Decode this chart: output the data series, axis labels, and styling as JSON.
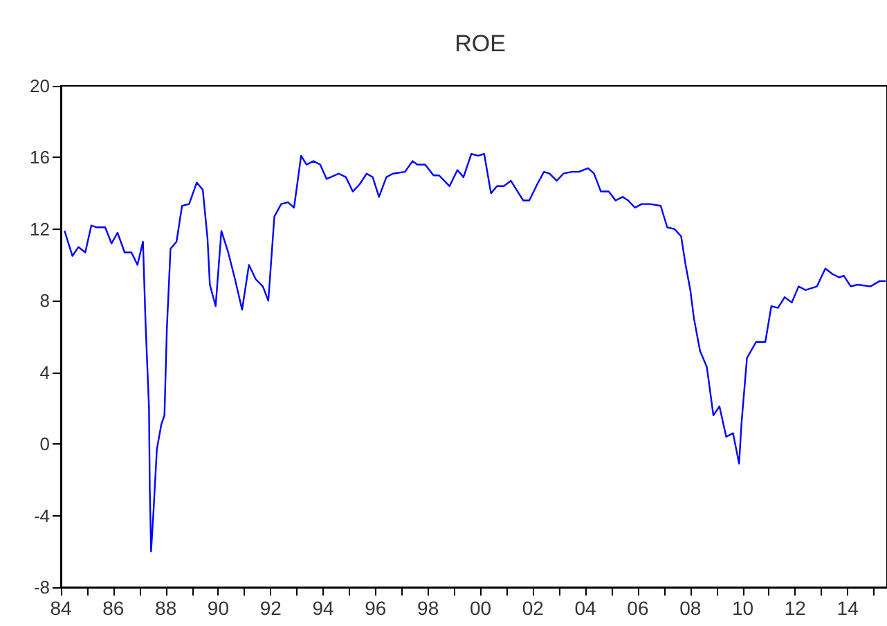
{
  "chart_data": {
    "type": "line",
    "title": "ROE",
    "x": [
      1984.14,
      1984.44,
      1984.67,
      1984.93,
      1985.16,
      1985.37,
      1985.69,
      1985.93,
      1986.16,
      1986.43,
      1986.69,
      1986.92,
      1987.13,
      1987.23,
      1987.36,
      1987.39,
      1987.44,
      1987.53,
      1987.66,
      1987.83,
      1987.95,
      1988.04,
      1988.18,
      1988.41,
      1988.62,
      1988.89,
      1989.18,
      1989.41,
      1989.59,
      1989.68,
      1989.9,
      1990.12,
      1990.38,
      1990.64,
      1990.91,
      1991.17,
      1991.43,
      1991.7,
      1991.91,
      1992.14,
      1992.4,
      1992.66,
      1992.89,
      1993.16,
      1993.37,
      1993.63,
      1993.89,
      1994.13,
      1994.6,
      1994.87,
      1995.13,
      1995.39,
      1995.66,
      1995.89,
      1996.13,
      1996.41,
      1996.66,
      1997.12,
      1997.41,
      1997.59,
      1997.89,
      1998.21,
      1998.42,
      1998.82,
      1999.12,
      1999.35,
      1999.65,
      1999.91,
      2000.14,
      2000.4,
      2000.63,
      2000.89,
      2001.16,
      2001.37,
      2001.63,
      2001.86,
      2002.16,
      2002.42,
      2002.63,
      2002.91,
      2003.16,
      2003.48,
      2003.75,
      2004.1,
      2004.33,
      2004.59,
      2004.89,
      2005.15,
      2005.42,
      2005.63,
      2005.89,
      2006.15,
      2006.47,
      2006.87,
      2007.12,
      2007.4,
      2007.65,
      2007.82,
      2008.0,
      2008.14,
      2008.37,
      2008.63,
      2008.88,
      2009.11,
      2009.37,
      2009.63,
      2009.86,
      2009.95,
      2010.04,
      2010.16,
      2010.51,
      2010.86,
      2011.09,
      2011.34,
      2011.6,
      2011.87,
      2012.13,
      2012.39,
      2012.83,
      2013.15,
      2013.41,
      2013.68,
      2013.85,
      2014.12,
      2014.38,
      2014.87,
      2015.22,
      2015.45
    ],
    "series": [
      {
        "color": "#0000ff",
        "values": [
          11.9,
          10.5,
          11.0,
          10.7,
          12.2,
          12.1,
          12.1,
          11.2,
          11.8,
          10.7,
          10.7,
          10.0,
          11.3,
          6.7,
          2.0,
          -2.5,
          -6.0,
          -3.8,
          -0.3,
          1.1,
          1.6,
          6.4,
          10.9,
          11.3,
          13.3,
          13.4,
          14.6,
          14.2,
          11.5,
          8.9,
          7.7,
          11.9,
          10.7,
          9.2,
          7.5,
          10.0,
          9.2,
          8.8,
          8.0,
          12.7,
          13.4,
          13.5,
          13.2,
          16.1,
          15.6,
          15.8,
          15.6,
          14.8,
          15.1,
          14.9,
          14.1,
          14.5,
          15.1,
          14.9,
          13.8,
          14.9,
          15.1,
          15.2,
          15.8,
          15.6,
          15.6,
          15.0,
          15.0,
          14.4,
          15.3,
          14.9,
          16.2,
          16.1,
          16.2,
          14.0,
          14.4,
          14.4,
          14.7,
          14.2,
          13.6,
          13.6,
          14.5,
          15.2,
          15.1,
          14.7,
          15.1,
          15.2,
          15.2,
          15.4,
          15.1,
          14.1,
          14.1,
          13.6,
          13.8,
          13.6,
          13.2,
          13.4,
          13.4,
          13.3,
          12.1,
          12.0,
          11.6,
          10.0,
          8.6,
          7.0,
          5.2,
          4.3,
          1.6,
          2.1,
          0.4,
          0.6,
          -1.1,
          1.1,
          2.7,
          4.8,
          5.7,
          5.7,
          7.7,
          7.6,
          8.2,
          7.9,
          8.8,
          8.6,
          8.8,
          9.8,
          9.5,
          9.3,
          9.4,
          8.8,
          8.9,
          8.8,
          9.1,
          9.1
        ]
      }
    ],
    "xlim": [
      1984,
      2015.5
    ],
    "xticks": [
      {
        "value": 1984,
        "label": "84"
      },
      {
        "value": 1985,
        "label": null
      },
      {
        "value": 1986,
        "label": "86"
      },
      {
        "value": 1987,
        "label": null
      },
      {
        "value": 1988,
        "label": "88"
      },
      {
        "value": 1989,
        "label": null
      },
      {
        "value": 1990,
        "label": "90"
      },
      {
        "value": 1991,
        "label": null
      },
      {
        "value": 1992,
        "label": "92"
      },
      {
        "value": 1993,
        "label": null
      },
      {
        "value": 1994,
        "label": "94"
      },
      {
        "value": 1995,
        "label": null
      },
      {
        "value": 1996,
        "label": "96"
      },
      {
        "value": 1997,
        "label": null
      },
      {
        "value": 1998,
        "label": "98"
      },
      {
        "value": 1999,
        "label": null
      },
      {
        "value": 2000,
        "label": "00"
      },
      {
        "value": 2001,
        "label": null
      },
      {
        "value": 2002,
        "label": "02"
      },
      {
        "value": 2003,
        "label": null
      },
      {
        "value": 2004,
        "label": "04"
      },
      {
        "value": 2005,
        "label": null
      },
      {
        "value": 2006,
        "label": "06"
      },
      {
        "value": 2007,
        "label": null
      },
      {
        "value": 2008,
        "label": "08"
      },
      {
        "value": 2009,
        "label": null
      },
      {
        "value": 2010,
        "label": "10"
      },
      {
        "value": 2011,
        "label": null
      },
      {
        "value": 2012,
        "label": "12"
      },
      {
        "value": 2013,
        "label": null
      },
      {
        "value": 2014,
        "label": "14"
      },
      {
        "value": 2015,
        "label": null
      }
    ],
    "ylim": [
      -8,
      20
    ],
    "yticks": [
      -8,
      -4,
      0,
      4,
      8,
      12,
      16,
      20
    ],
    "grid": false,
    "marker": "none",
    "line_style": "solid"
  }
}
